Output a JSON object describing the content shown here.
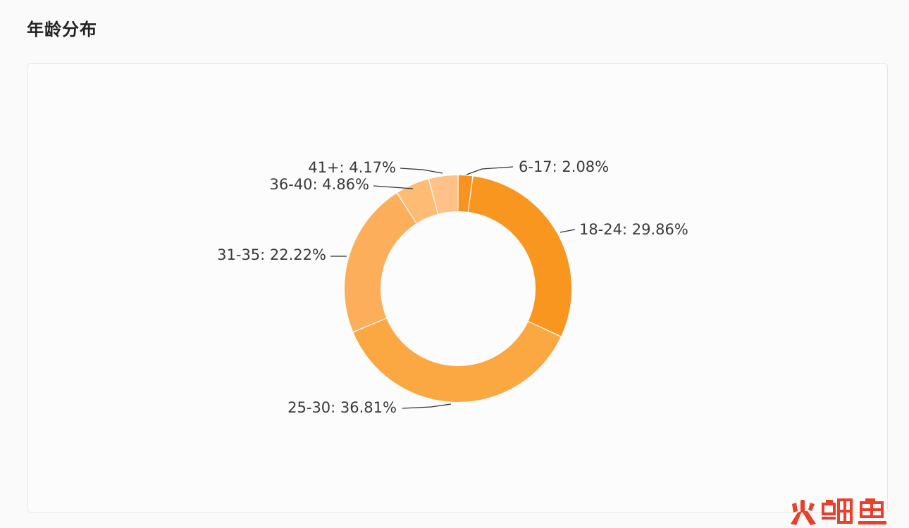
{
  "section": {
    "title": "年龄分布"
  },
  "colors": {
    "slice_fills": [
      "#f7931e",
      "#f8961f",
      "#fba843",
      "#fcae5b",
      "#fdbb73",
      "#fec289"
    ],
    "label_text": "#3a3a3a",
    "leader_line": "#333333"
  },
  "chart_data": {
    "type": "pie",
    "variant": "donut",
    "title": "年龄分布",
    "start_angle_deg": 0,
    "direction": "clockwise",
    "slices": [
      {
        "category": "6-17",
        "value": 2.08,
        "label": "6-17: 2.08%"
      },
      {
        "category": "18-24",
        "value": 29.86,
        "label": "18-24: 29.86%"
      },
      {
        "category": "25-30",
        "value": 36.81,
        "label": "25-30: 36.81%"
      },
      {
        "category": "31-35",
        "value": 22.22,
        "label": "31-35: 22.22%"
      },
      {
        "category": "36-40",
        "value": 4.86,
        "label": "36-40: 4.86%"
      },
      {
        "category": "41+",
        "value": 4.17,
        "label": "41+: 4.17%"
      }
    ]
  },
  "watermark": {
    "text": "火鲤鱼",
    "kind": "logo"
  }
}
